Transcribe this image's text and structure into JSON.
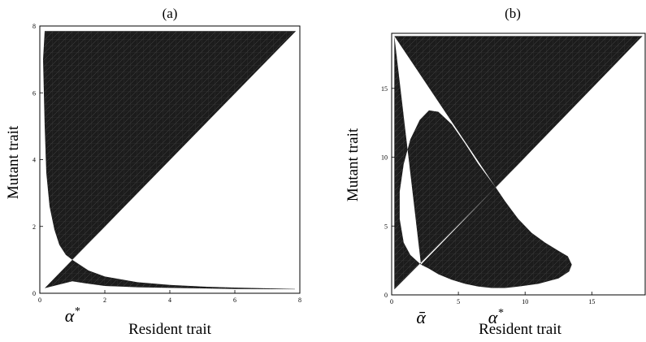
{
  "chart_data": [
    {
      "type": "area",
      "panel": "(a)",
      "xlabel": "Resident trait",
      "ylabel": "Mutant trait",
      "xlim": [
        0,
        8
      ],
      "ylim": [
        0,
        8
      ],
      "xticks": [
        0,
        2,
        4,
        6,
        8
      ],
      "yticks": [
        0,
        2,
        4,
        6,
        8
      ],
      "annotations": [
        {
          "text": "α*",
          "x": 1
        }
      ],
      "grid": false,
      "region_color": "#1c1c1c",
      "regions": [
        {
          "name": "",
          "x": [
            0.15,
            0.1,
            0.15,
            0.2,
            0.3,
            0.45,
            0.6,
            0.8,
            1.0,
            7.88,
            0.15
          ],
          "y": [
            7.85,
            7.0,
            5.0,
            3.6,
            2.6,
            1.9,
            1.45,
            1.15,
            1.0,
            7.85,
            7.85
          ]
        },
        {
          "name": "",
          "x": [
            0.15,
            0.6,
            1.0,
            1.5,
            2.0,
            3.0,
            4.0,
            5.0,
            6.0,
            7.85,
            7.85,
            6.0,
            4.0,
            3.0,
            2.0,
            1.4,
            1.0,
            0.15
          ],
          "y": [
            0.15,
            0.6,
            1.0,
            0.68,
            0.5,
            0.33,
            0.25,
            0.2,
            0.17,
            0.13,
            0.12,
            0.13,
            0.16,
            0.18,
            0.22,
            0.3,
            0.36,
            0.15
          ]
        }
      ]
    },
    {
      "type": "area",
      "panel": "(b)",
      "xlabel": "Resident trait",
      "ylabel": "Mutant trait",
      "xlim": [
        0,
        19
      ],
      "ylim": [
        0,
        19
      ],
      "xticks": [
        0,
        5,
        10,
        15
      ],
      "yticks": [
        0,
        5,
        10,
        15
      ],
      "annotations": [
        {
          "text": "ᾱ",
          "x": 2.2
        },
        {
          "text": "α*",
          "x": 7.8
        }
      ],
      "grid": false,
      "region_color": "#1c1c1c",
      "regions": [
        {
          "name": "",
          "x": [
            0.2,
            0.2,
            7.8,
            2.2,
            0.2
          ],
          "y": [
            18.8,
            0.4,
            7.8,
            2.2,
            18.8
          ],
          "holes": [
            {
              "x": [
                2.2,
                1.4,
                0.9,
                0.6,
                0.6,
                0.9,
                1.4,
                2.1,
                2.8,
                3.5,
                4.5,
                5.5,
                6.5,
                7.8,
                6.5,
                5.0,
                4.0,
                3.2,
                2.6,
                2.2
              ],
              "y": [
                2.2,
                2.9,
                3.8,
                5.5,
                7.5,
                9.5,
                11.3,
                12.7,
                13.4,
                13.3,
                12.4,
                11.0,
                9.5,
                7.8,
                6.3,
                4.9,
                4.0,
                3.2,
                2.6,
                2.2
              ]
            }
          ]
        },
        {
          "name": "",
          "x": [
            0.2,
            18.8,
            7.8,
            0.2
          ],
          "y": [
            18.8,
            18.8,
            7.8,
            18.8
          ]
        },
        {
          "name": "",
          "x": [
            7.8,
            8.5,
            9.5,
            10.5,
            11.5,
            12.5,
            13.2,
            13.5,
            13.3,
            12.5,
            11.0,
            9.5,
            8.5,
            7.5,
            6.5,
            5.5,
            4.5,
            3.5,
            2.8,
            2.2,
            3.2,
            4.5,
            6.0,
            7.0,
            7.8
          ],
          "y": [
            7.8,
            6.8,
            5.5,
            4.5,
            3.8,
            3.2,
            2.8,
            2.2,
            1.7,
            1.2,
            0.8,
            0.6,
            0.5,
            0.5,
            0.6,
            0.8,
            1.1,
            1.5,
            1.9,
            2.2,
            3.2,
            4.5,
            6.0,
            7.0,
            7.8
          ]
        }
      ]
    }
  ]
}
